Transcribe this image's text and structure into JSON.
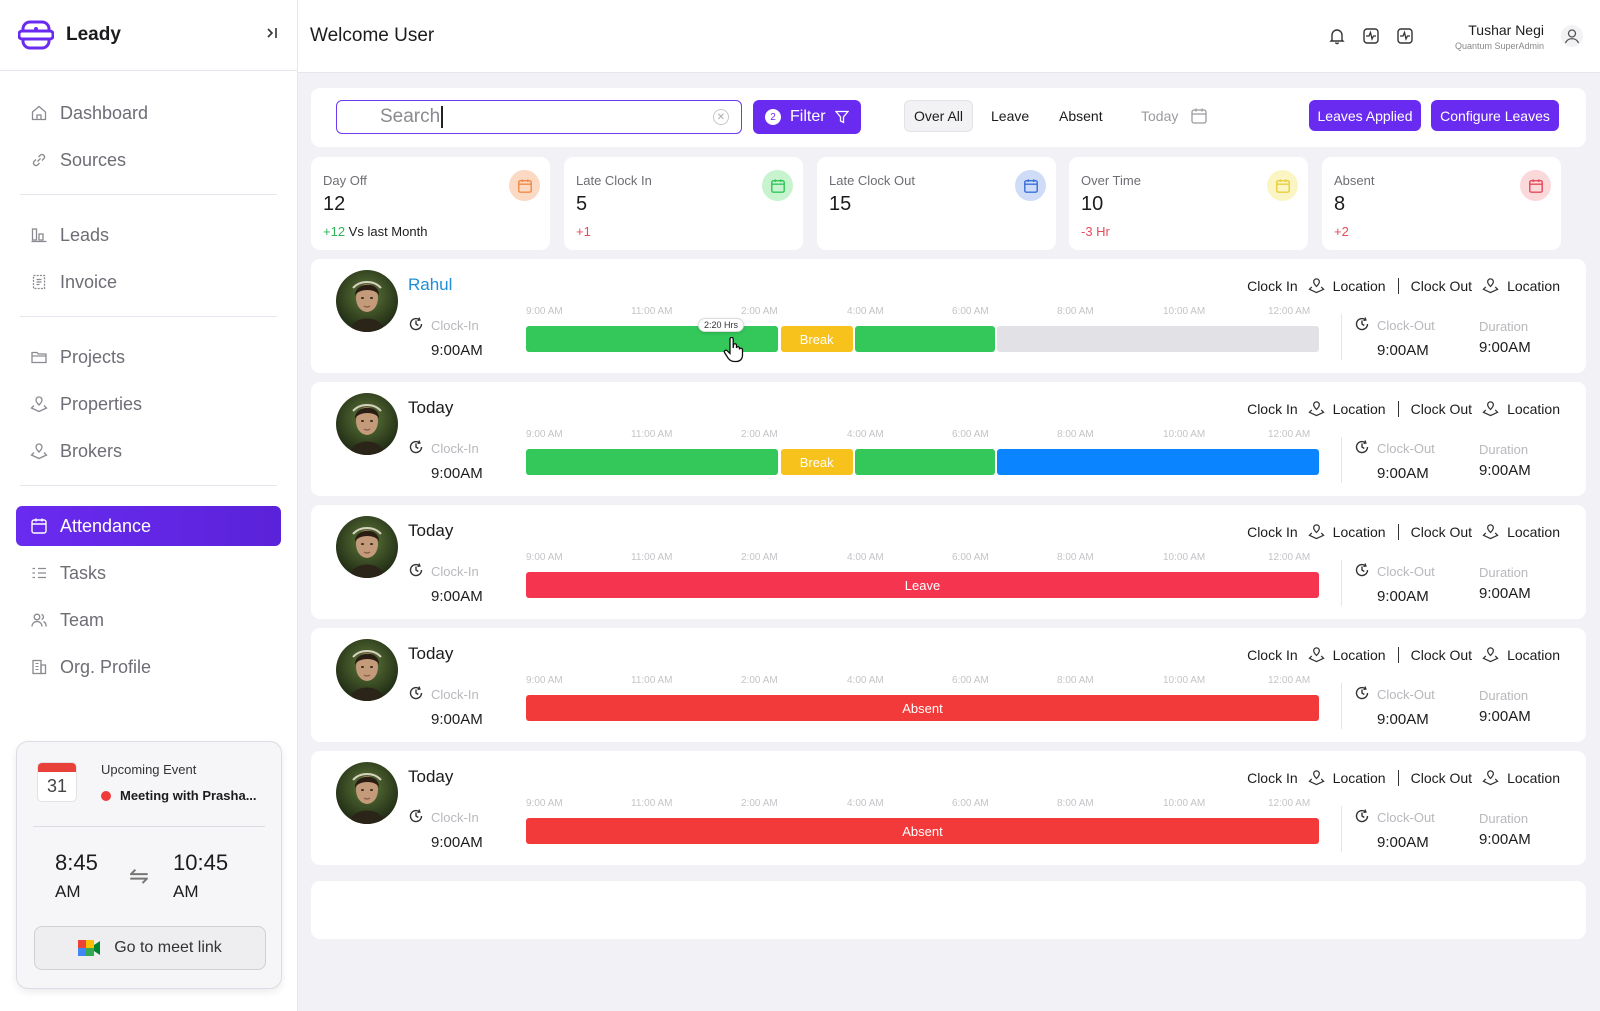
{
  "app": {
    "name": "Leady",
    "collapse_icon": "⇥"
  },
  "sidebar": {
    "items": [
      {
        "label": "Dashboard",
        "icon": "home-icon",
        "active": false
      },
      {
        "label": "Sources",
        "icon": "link-icon",
        "active": false
      },
      {
        "label": "Leads",
        "icon": "leads-icon",
        "active": false
      },
      {
        "label": "Invoice",
        "icon": "invoice-icon",
        "active": false
      },
      {
        "label": "Projects",
        "icon": "folder-icon",
        "active": false
      },
      {
        "label": "Properties",
        "icon": "map-pin-icon",
        "active": false
      },
      {
        "label": "Brokers",
        "icon": "map-pin-icon",
        "active": false
      },
      {
        "label": "Attendance",
        "icon": "calendar-icon",
        "active": true
      },
      {
        "label": "Tasks",
        "icon": "tasks-icon",
        "active": false
      },
      {
        "label": "Team",
        "icon": "team-icon",
        "active": false
      },
      {
        "label": "Org. Profile",
        "icon": "building-icon",
        "active": false
      }
    ]
  },
  "event": {
    "calendar_day": "31",
    "title": "Upcoming Event",
    "meeting": "Meeting with Prasha...",
    "start_time": "8:45",
    "start_ampm": "AM",
    "end_time": "10:45",
    "end_ampm": "AM",
    "swap_icon": "⇋",
    "meet_button": "Go to meet link"
  },
  "header": {
    "welcome": "Welcome User",
    "user_name": "Tushar Negi",
    "user_role": "Quantum SuperAdmin"
  },
  "toolbar": {
    "search_value": "Search",
    "filter_label": "Filter",
    "filter_count": "2",
    "segments": [
      "Over All",
      "Leave",
      "Absent"
    ],
    "selected_segment": "Over All",
    "date_label": "Today",
    "leaves_applied": "Leaves Applied",
    "configure_leaves": "Configure Leaves"
  },
  "stats": [
    {
      "label": "Day Off",
      "value": "12",
      "delta": "+12",
      "delta_suffix": " Vs last Month",
      "delta_color": "#2fb457",
      "icon_bg": "#fcd9c2",
      "icon_color": "#f08a4b"
    },
    {
      "label": "Late Clock In",
      "value": "5",
      "delta": "+1",
      "delta_suffix": "",
      "delta_color": "#e54b5b",
      "icon_bg": "#c8f3cf",
      "icon_color": "#33c759"
    },
    {
      "label": "Late Clock Out",
      "value": "15",
      "delta": "",
      "delta_suffix": "",
      "delta_color": "#1c1c1e",
      "icon_bg": "#cfdcf7",
      "icon_color": "#3b6fd8"
    },
    {
      "label": "Over Time",
      "value": "10",
      "delta": "-3 Hr",
      "delta_suffix": "",
      "delta_color": "#e54b5b",
      "icon_bg": "#fbf5c4",
      "icon_color": "#e8cf3b"
    },
    {
      "label": "Absent",
      "value": "8",
      "delta": "+2",
      "delta_suffix": "",
      "delta_color": "#e54b5b",
      "icon_bg": "#fbd8da",
      "icon_color": "#e54b5b"
    }
  ],
  "timeline_ticks": [
    "9:00 AM",
    "11:00 AM",
    "2:00 AM",
    "4:00 AM",
    "6:00 AM",
    "8:00 AM",
    "10:00 AM",
    "12:00 AM"
  ],
  "labels": {
    "clock_in": "Clock In",
    "clock_out": "Clock Out",
    "location": "Location",
    "clock_in_field": "Clock-In",
    "clock_out_field": "Clock-Out",
    "duration": "Duration"
  },
  "colors": {
    "work": "#34c759",
    "break": "#f7c21b",
    "remaining": "#e2e2e6",
    "overtime": "#0a84ff",
    "leave": "#f5344f",
    "absent": "#f23a3a",
    "accent": "#6a2bf0"
  },
  "rows": [
    {
      "name": "Rahul",
      "is_link": true,
      "clock_in": "9:00AM",
      "clock_out": "9:00AM",
      "duration": "9:00AM",
      "tooltip": "2:20 Hrs",
      "segments": [
        {
          "type": "work",
          "start": 0,
          "end": 0.318,
          "label": ""
        },
        {
          "type": "break",
          "start": 0.321,
          "end": 0.412,
          "label": "Break"
        },
        {
          "type": "work",
          "start": 0.415,
          "end": 0.592,
          "label": ""
        },
        {
          "type": "remaining",
          "start": 0.594,
          "end": 1,
          "label": ""
        }
      ]
    },
    {
      "name": "Today",
      "is_link": false,
      "clock_in": "9:00AM",
      "clock_out": "9:00AM",
      "duration": "9:00AM",
      "segments": [
        {
          "type": "work",
          "start": 0,
          "end": 0.318,
          "label": ""
        },
        {
          "type": "break",
          "start": 0.321,
          "end": 0.412,
          "label": "Break"
        },
        {
          "type": "work",
          "start": 0.415,
          "end": 0.592,
          "label": ""
        },
        {
          "type": "overtime",
          "start": 0.594,
          "end": 1,
          "label": ""
        }
      ]
    },
    {
      "name": "Today",
      "is_link": false,
      "clock_in": "9:00AM",
      "clock_out": "9:00AM",
      "duration": "9:00AM",
      "segments": [
        {
          "type": "leave",
          "start": 0,
          "end": 1,
          "label": "Leave"
        }
      ]
    },
    {
      "name": "Today",
      "is_link": false,
      "clock_in": "9:00AM",
      "clock_out": "9:00AM",
      "duration": "9:00AM",
      "segments": [
        {
          "type": "absent",
          "start": 0,
          "end": 1,
          "label": "Absent"
        }
      ]
    },
    {
      "name": "Today",
      "is_link": false,
      "clock_in": "9:00AM",
      "clock_out": "9:00AM",
      "duration": "9:00AM",
      "segments": [
        {
          "type": "absent",
          "start": 0,
          "end": 1,
          "label": "Absent"
        }
      ]
    }
  ]
}
